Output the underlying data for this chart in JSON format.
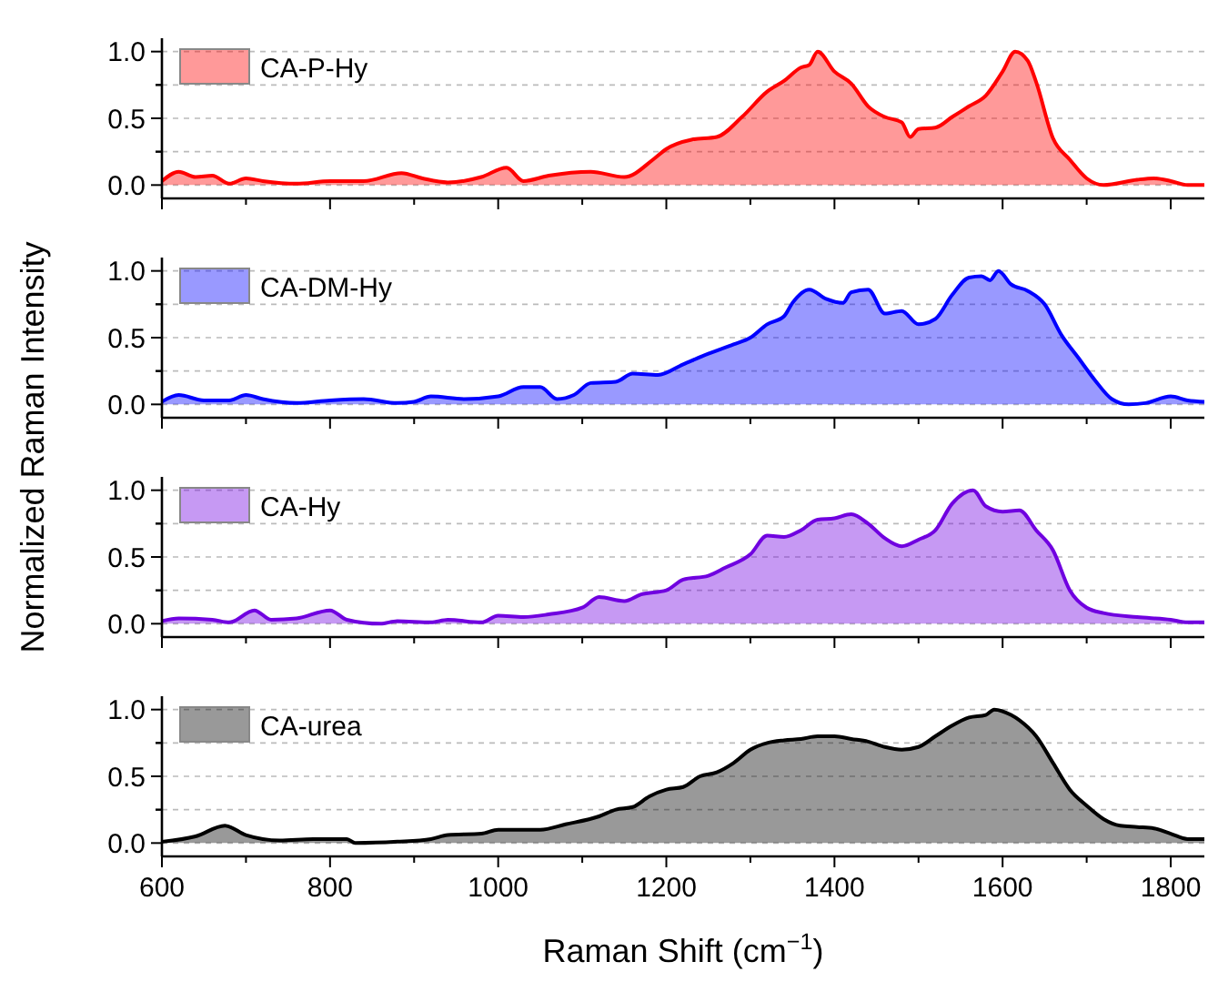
{
  "chart_data": [
    {
      "type": "area",
      "x": [
        600,
        620,
        640,
        660,
        680,
        700,
        720,
        760,
        800,
        840,
        885,
        910,
        940,
        980,
        1010,
        1030,
        1060,
        1110,
        1150,
        1186,
        1200,
        1230,
        1260,
        1290,
        1320,
        1340,
        1360,
        1370,
        1380,
        1400,
        1420,
        1440,
        1460,
        1480,
        1490,
        1500,
        1520,
        1540,
        1560,
        1580,
        1600,
        1615,
        1630,
        1640,
        1660,
        1680,
        1700,
        1720,
        1760,
        1780,
        1800,
        1820,
        1840
      ],
      "series": [
        {
          "name": "CA-P-Hy",
          "color": "#ff0000",
          "values": [
            0.03,
            0.1,
            0.06,
            0.07,
            0.01,
            0.05,
            0.03,
            0.01,
            0.03,
            0.03,
            0.09,
            0.05,
            0.02,
            0.06,
            0.13,
            0.03,
            0.07,
            0.1,
            0.06,
            0.2,
            0.27,
            0.34,
            0.36,
            0.51,
            0.7,
            0.78,
            0.88,
            0.9,
            1.0,
            0.85,
            0.76,
            0.59,
            0.51,
            0.47,
            0.36,
            0.42,
            0.43,
            0.51,
            0.59,
            0.67,
            0.85,
            1.0,
            0.93,
            0.77,
            0.35,
            0.19,
            0.05,
            0.0,
            0.04,
            0.05,
            0.03,
            0.0,
            0.0
          ]
        }
      ],
      "xlim": [
        600,
        1840
      ],
      "xticks": [
        600,
        {
          "value": 700,
          "label": null
        },
        800,
        {
          "value": 900,
          "label": null
        },
        1000,
        {
          "value": 1100,
          "label": null
        },
        1200,
        {
          "value": 1300,
          "label": null
        },
        1400,
        {
          "value": 1500,
          "label": null
        },
        1600,
        {
          "value": 1700,
          "label": null
        },
        1800
      ],
      "ylim": [
        -0.1,
        1.1
      ],
      "yticks": [
        {
          "value": 0,
          "label": "0.0"
        },
        {
          "value": 0.25,
          "label": null
        },
        {
          "value": 0.5,
          "label": "0.5"
        },
        {
          "value": 0.75,
          "label": null
        },
        {
          "value": 1,
          "label": "1.0"
        }
      ],
      "grid": "y",
      "legend": "top left",
      "tick_labels": "y"
    },
    {
      "type": "area",
      "x": [
        600,
        620,
        650,
        680,
        700,
        720,
        760,
        800,
        840,
        880,
        900,
        920,
        960,
        1000,
        1030,
        1050,
        1070,
        1090,
        1110,
        1140,
        1160,
        1190,
        1220,
        1250,
        1280,
        1300,
        1320,
        1340,
        1350,
        1370,
        1390,
        1410,
        1420,
        1440,
        1460,
        1480,
        1500,
        1520,
        1540,
        1560,
        1575,
        1585,
        1595,
        1610,
        1630,
        1650,
        1670,
        1690,
        1710,
        1730,
        1750,
        1770,
        1800,
        1820,
        1840
      ],
      "series": [
        {
          "name": "CA-DM-Hy",
          "color": "#0000ff",
          "values": [
            0.02,
            0.07,
            0.03,
            0.03,
            0.07,
            0.04,
            0.01,
            0.03,
            0.04,
            0.01,
            0.02,
            0.06,
            0.04,
            0.06,
            0.13,
            0.13,
            0.04,
            0.07,
            0.16,
            0.17,
            0.23,
            0.22,
            0.3,
            0.38,
            0.45,
            0.5,
            0.6,
            0.66,
            0.76,
            0.86,
            0.79,
            0.76,
            0.84,
            0.86,
            0.68,
            0.7,
            0.6,
            0.64,
            0.82,
            0.95,
            0.96,
            0.93,
            1.0,
            0.9,
            0.85,
            0.75,
            0.52,
            0.35,
            0.18,
            0.04,
            0.0,
            0.01,
            0.06,
            0.03,
            0.02
          ]
        }
      ],
      "ylabel": "Normalized Raman Intensity",
      "xlim": [
        600,
        1840
      ],
      "xticks": [
        600,
        {
          "value": 700,
          "label": null
        },
        800,
        {
          "value": 900,
          "label": null
        },
        1000,
        {
          "value": 1100,
          "label": null
        },
        1200,
        {
          "value": 1300,
          "label": null
        },
        1400,
        {
          "value": 1500,
          "label": null
        },
        1600,
        {
          "value": 1700,
          "label": null
        },
        1800
      ],
      "ylim": [
        -0.1,
        1.1
      ],
      "yticks": [
        {
          "value": 0,
          "label": "0.0"
        },
        {
          "value": 0.25,
          "label": null
        },
        {
          "value": 0.5,
          "label": "0.5"
        },
        {
          "value": 0.75,
          "label": null
        },
        {
          "value": 1,
          "label": "1.0"
        }
      ],
      "grid": "y",
      "legend": "top left",
      "tick_labels": "y"
    },
    {
      "type": "area",
      "x": [
        600,
        620,
        660,
        680,
        710,
        730,
        760,
        800,
        820,
        860,
        880,
        920,
        940,
        980,
        1000,
        1030,
        1060,
        1100,
        1120,
        1150,
        1170,
        1200,
        1220,
        1250,
        1270,
        1300,
        1320,
        1340,
        1360,
        1380,
        1400,
        1420,
        1440,
        1460,
        1480,
        1500,
        1520,
        1540,
        1565,
        1580,
        1600,
        1620,
        1640,
        1660,
        1680,
        1700,
        1720,
        1760,
        1800,
        1820,
        1840
      ],
      "series": [
        {
          "name": "CA-Hy",
          "color": "#7000e0",
          "values": [
            0.02,
            0.04,
            0.03,
            0.01,
            0.1,
            0.03,
            0.04,
            0.1,
            0.03,
            0.0,
            0.02,
            0.01,
            0.03,
            0.01,
            0.06,
            0.05,
            0.07,
            0.12,
            0.2,
            0.17,
            0.22,
            0.25,
            0.33,
            0.36,
            0.42,
            0.52,
            0.66,
            0.65,
            0.7,
            0.78,
            0.79,
            0.82,
            0.75,
            0.64,
            0.58,
            0.63,
            0.7,
            0.9,
            1.0,
            0.88,
            0.84,
            0.85,
            0.7,
            0.55,
            0.25,
            0.12,
            0.08,
            0.05,
            0.03,
            0.01,
            0.01
          ]
        }
      ],
      "xlim": [
        600,
        1840
      ],
      "xticks": [
        600,
        {
          "value": 700,
          "label": null
        },
        800,
        {
          "value": 900,
          "label": null
        },
        1000,
        {
          "value": 1100,
          "label": null
        },
        1200,
        {
          "value": 1300,
          "label": null
        },
        1400,
        {
          "value": 1500,
          "label": null
        },
        1600,
        {
          "value": 1700,
          "label": null
        },
        1800
      ],
      "ylim": [
        -0.1,
        1.1
      ],
      "yticks": [
        {
          "value": 0,
          "label": "0.0"
        },
        {
          "value": 0.25,
          "label": null
        },
        {
          "value": 0.5,
          "label": "0.5"
        },
        {
          "value": 0.75,
          "label": null
        },
        {
          "value": 1,
          "label": "1.0"
        }
      ],
      "grid": "y",
      "legend": "top left",
      "tick_labels": "y"
    },
    {
      "type": "area",
      "x": [
        600,
        640,
        675,
        700,
        740,
        780,
        820,
        830,
        880,
        920,
        940,
        980,
        1000,
        1050,
        1080,
        1120,
        1140,
        1160,
        1180,
        1200,
        1220,
        1240,
        1260,
        1280,
        1300,
        1320,
        1340,
        1360,
        1380,
        1400,
        1420,
        1440,
        1460,
        1480,
        1500,
        1520,
        1540,
        1560,
        1580,
        1590,
        1610,
        1620,
        1640,
        1660,
        1680,
        1700,
        1720,
        1740,
        1760,
        1780,
        1800,
        1820,
        1840
      ],
      "series": [
        {
          "name": "CA-urea",
          "color": "#000000",
          "values": [
            0.01,
            0.05,
            0.13,
            0.06,
            0.02,
            0.03,
            0.03,
            0.0,
            0.01,
            0.03,
            0.06,
            0.07,
            0.1,
            0.1,
            0.14,
            0.2,
            0.25,
            0.27,
            0.35,
            0.4,
            0.42,
            0.5,
            0.53,
            0.6,
            0.7,
            0.75,
            0.77,
            0.78,
            0.8,
            0.8,
            0.78,
            0.76,
            0.72,
            0.7,
            0.72,
            0.8,
            0.88,
            0.94,
            0.96,
            1.0,
            0.96,
            0.92,
            0.8,
            0.6,
            0.4,
            0.28,
            0.18,
            0.13,
            0.12,
            0.11,
            0.07,
            0.03,
            0.03
          ]
        }
      ],
      "xlabel": "Raman Shift (cm$^{−1}$)",
      "xlim": [
        600,
        1840
      ],
      "xticks": [
        600,
        {
          "value": 700,
          "label": null
        },
        800,
        {
          "value": 900,
          "label": null
        },
        1000,
        {
          "value": 1100,
          "label": null
        },
        1200,
        {
          "value": 1300,
          "label": null
        },
        1400,
        {
          "value": 1500,
          "label": null
        },
        1600,
        {
          "value": 1700,
          "label": null
        },
        1800
      ],
      "ylim": [
        -0.1,
        1.1
      ],
      "yticks": [
        {
          "value": 0,
          "label": "0.0"
        },
        {
          "value": 0.25,
          "label": null
        },
        {
          "value": 0.5,
          "label": "0.5"
        },
        {
          "value": 0.75,
          "label": null
        },
        {
          "value": 1,
          "label": "1.0"
        }
      ],
      "grid": "y",
      "legend": "top left"
    }
  ]
}
